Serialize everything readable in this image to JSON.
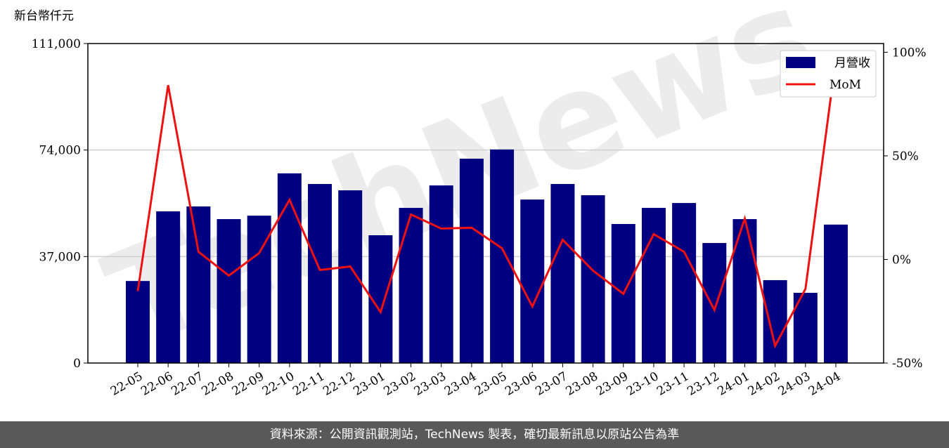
{
  "chart_data": {
    "type": "bar_line",
    "y_label": "新台幣仟元",
    "watermark": "TechNews",
    "categories": [
      "22-05",
      "22-06",
      "22-07",
      "22-08",
      "22-09",
      "22-10",
      "22-11",
      "22-12",
      "23-01",
      "23-02",
      "23-03",
      "23-04",
      "23-05",
      "23-06",
      "23-07",
      "23-08",
      "23-09",
      "23-10",
      "23-11",
      "23-12",
      "24-01",
      "24-02",
      "24-03",
      "24-04"
    ],
    "series": [
      {
        "name": "月營收",
        "type": "bar",
        "color": "#000080",
        "values": [
          28500,
          52700,
          54400,
          50000,
          51200,
          65900,
          62200,
          60000,
          44400,
          53900,
          61700,
          71000,
          74200,
          56800,
          62200,
          58300,
          48300,
          53900,
          55600,
          41700,
          50000,
          28800,
          24400,
          48100
        ]
      },
      {
        "name": "MoM",
        "type": "line",
        "axis": "y2",
        "color": "#ee1111",
        "values": [
          -15.3,
          84.1,
          3.7,
          -7.8,
          3.1,
          28.8,
          -5.1,
          -3.4,
          -25.4,
          21.7,
          14.9,
          15.3,
          5.4,
          -22.7,
          9.5,
          -5.4,
          -16.6,
          12.2,
          3.7,
          -24.4,
          19.7,
          -41.7,
          -14.2,
          96.6
        ]
      }
    ],
    "ylim": [
      0,
      111000
    ],
    "yticks": [
      0,
      {
        "value": 37000,
        "label": "37,000"
      },
      {
        "value": 74000,
        "label": "74,000"
      },
      {
        "value": 111000,
        "label": "111,000"
      }
    ],
    "y2lim": [
      -50,
      104.2
    ],
    "y2ticks": [
      {
        "value": -50,
        "label": "-50%"
      },
      {
        "value": 0,
        "label": "0%"
      },
      {
        "value": 50,
        "label": "50%"
      },
      {
        "value": 100,
        "label": "100%"
      }
    ],
    "grid": true,
    "legend": "upper right",
    "footer": "資料來源：公開資訊觀測站，TechNews 製表，確切最新訊息以原站公告為準"
  }
}
